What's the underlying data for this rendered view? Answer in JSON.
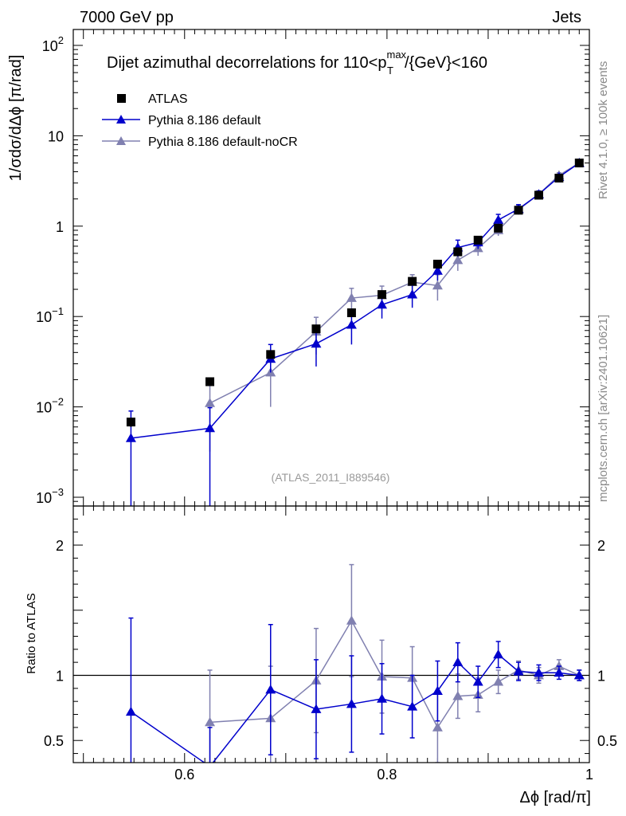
{
  "header": {
    "left": "7000 GeV pp",
    "right": "Jets"
  },
  "side_labels": {
    "top": "Rivet 4.1.0, ≥ 100k events",
    "bottom": "mcplots.cern.ch [arXiv:2401.10621]"
  },
  "chart_data": {
    "type": "scatter",
    "title_parts": {
      "prefix": "Dijet azimuthal decorrelations for 110<p",
      "sup": "max",
      "sub": "T",
      "suffix": "/{GeV}<160"
    },
    "analysis_id": "(ATLAS_2011_I889546)",
    "xlabel": "Δϕ [rad/π]",
    "ylabel": "1/σdσ/dΔϕ [π/rad]",
    "ratio_ylabel": "Ratio to ATLAS",
    "xlim": [
      0.49,
      1.0
    ],
    "ylim": [
      0.0008,
      150
    ],
    "ratio_ylim": [
      0.33,
      2.3
    ],
    "x_ticks": [
      {
        "value": 0.6,
        "label": "0.6"
      },
      {
        "value": 0.8,
        "label": "0.8"
      },
      {
        "value": 1.0,
        "label": "1"
      }
    ],
    "y_ticks": [
      {
        "value": 0.001,
        "base": "10",
        "exp": "−3"
      },
      {
        "value": 0.01,
        "base": "10",
        "exp": "−2"
      },
      {
        "value": 0.1,
        "base": "10",
        "exp": "−1"
      },
      {
        "value": 1,
        "base": "1",
        "exp": ""
      },
      {
        "value": 10,
        "base": "10",
        "exp": ""
      },
      {
        "value": 100,
        "base": "10",
        "exp": "2"
      }
    ],
    "ratio_ticks": [
      {
        "value": 0.5,
        "label": "0.5"
      },
      {
        "value": 1,
        "label": "1"
      },
      {
        "value": 2,
        "label": "2"
      }
    ],
    "x": [
      0.547,
      0.625,
      0.685,
      0.73,
      0.765,
      0.795,
      0.825,
      0.85,
      0.87,
      0.89,
      0.91,
      0.93,
      0.95,
      0.97,
      0.99
    ],
    "series": [
      {
        "name": "ATLAS",
        "color": "#000000",
        "marker": "square",
        "values": [
          0.0068,
          0.019,
          0.038,
          0.073,
          0.11,
          0.175,
          0.245,
          0.38,
          0.52,
          0.7,
          0.95,
          1.5,
          2.2,
          3.4,
          5.0
        ],
        "err_lo": [
          0.0008,
          0.002,
          0.003,
          0.006,
          0.01,
          0.015,
          0.02,
          0.03,
          0.04,
          0.05,
          0.07,
          0.1,
          0.15,
          0.2,
          0.25
        ],
        "err_hi": [
          0.0008,
          0.002,
          0.003,
          0.006,
          0.01,
          0.015,
          0.02,
          0.03,
          0.04,
          0.05,
          0.07,
          0.1,
          0.15,
          0.2,
          0.25
        ]
      },
      {
        "name": "Pythia 8.186 default",
        "color": "#0000cc",
        "marker": "triangle",
        "values": [
          0.0045,
          0.0058,
          0.034,
          0.05,
          0.081,
          0.135,
          0.175,
          0.32,
          0.58,
          0.66,
          1.17,
          1.55,
          2.25,
          3.5,
          5.0
        ],
        "err_lo": [
          0.0044,
          0.0057,
          0.01,
          0.022,
          0.032,
          0.04,
          0.05,
          0.07,
          0.12,
          0.1,
          0.18,
          0.18,
          0.2,
          0.25,
          0.3
        ],
        "err_hi": [
          0.0045,
          0.004,
          0.015,
          0.022,
          0.033,
          0.04,
          0.05,
          0.07,
          0.12,
          0.1,
          0.18,
          0.18,
          0.2,
          0.25,
          0.3
        ],
        "ratio": [
          0.72,
          0.3,
          0.89,
          0.74,
          0.78,
          0.82,
          0.76,
          0.88,
          1.1,
          0.95,
          1.16,
          1.03,
          1.02,
          1.02,
          1.0
        ],
        "ratio_err_lo": [
          0.72,
          0.3,
          0.5,
          0.38,
          0.37,
          0.27,
          0.24,
          0.23,
          0.15,
          0.12,
          0.1,
          0.07,
          0.06,
          0.05,
          0.04
        ],
        "ratio_err_hi": [
          0.72,
          0.3,
          0.5,
          0.38,
          0.37,
          0.27,
          0.24,
          0.23,
          0.15,
          0.12,
          0.1,
          0.07,
          0.06,
          0.05,
          0.04
        ]
      },
      {
        "name": "Pythia 8.186 default-noCR",
        "color": "#8080b0",
        "marker": "triangle",
        "values": [
          null,
          0.011,
          0.024,
          0.068,
          0.16,
          0.172,
          0.24,
          0.22,
          0.42,
          0.57,
          0.9,
          1.52,
          2.25,
          3.65,
          5.0
        ],
        "err_lo": [
          null,
          0.0078,
          0.014,
          0.03,
          0.045,
          0.045,
          0.05,
          0.07,
          0.1,
          0.1,
          0.12,
          0.18,
          0.2,
          0.25,
          0.3
        ],
        "err_hi": [
          null,
          0.0078,
          0.014,
          0.03,
          0.045,
          0.045,
          0.05,
          0.07,
          0.1,
          0.1,
          0.12,
          0.18,
          0.2,
          0.25,
          0.3
        ],
        "ratio": [
          null,
          0.64,
          0.67,
          0.96,
          1.42,
          0.99,
          0.98,
          0.6,
          0.84,
          0.85,
          0.95,
          1.04,
          1.0,
          1.07,
          1.0
        ],
        "ratio_err_lo": [
          null,
          0.4,
          0.4,
          0.4,
          0.43,
          0.28,
          0.24,
          0.27,
          0.17,
          0.13,
          0.09,
          0.07,
          0.06,
          0.05,
          0.04
        ],
        "ratio_err_hi": [
          null,
          0.4,
          0.4,
          0.4,
          0.43,
          0.28,
          0.24,
          0.27,
          0.17,
          0.13,
          0.09,
          0.07,
          0.06,
          0.05,
          0.04
        ]
      }
    ]
  }
}
